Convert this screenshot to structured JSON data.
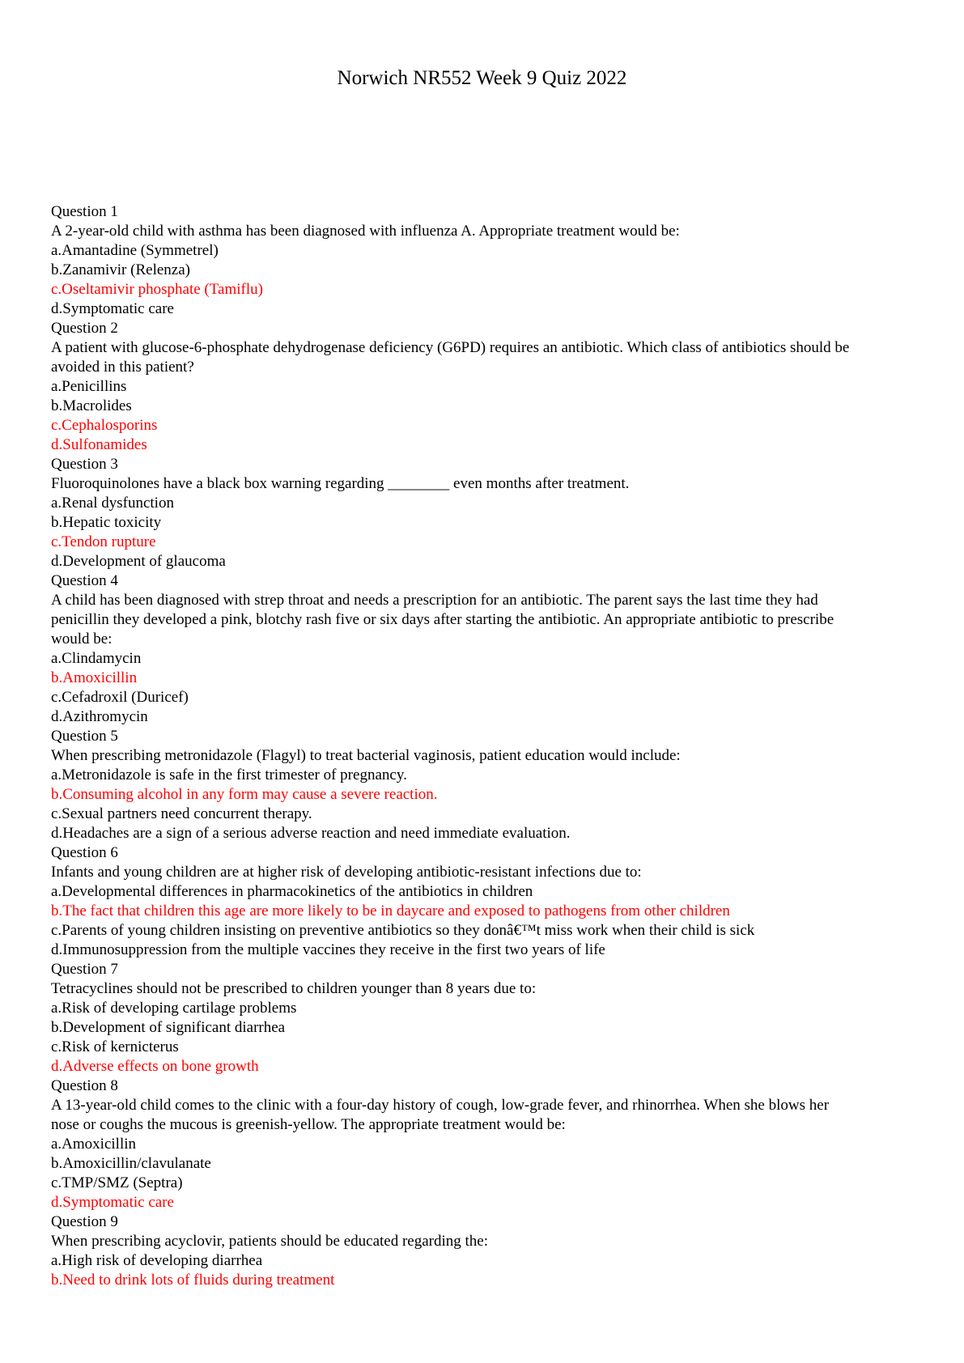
{
  "page": {
    "title": "Norwich NR552 Week 9 Quiz 2022"
  },
  "colors": {
    "text": "#000000",
    "correct_answer": "#ff0000",
    "background": "#ffffff"
  },
  "quiz": {
    "questions": [
      {
        "number": "Question 1",
        "stem_lines": [
          "A 2-year-old child with asthma has been diagnosed with influenza A. Appropriate treatment would be:"
        ],
        "options": [
          {
            "text": "a.Amantadine (Symmetrel)",
            "correct": false
          },
          {
            "text": "b.Zanamivir (Relenza)",
            "correct": false
          },
          {
            "text": "c.Oseltamivir phosphate (Tamiflu)",
            "correct": true
          },
          {
            "text": "d.Symptomatic care",
            "correct": false
          }
        ]
      },
      {
        "number": "Question 2",
        "stem_lines": [
          "A patient with glucose-6-phosphate dehydrogenase deficiency (G6PD) requires an antibiotic. Which class of antibiotics should be",
          "avoided in this patient?"
        ],
        "options": [
          {
            "text": "a.Penicillins",
            "correct": false
          },
          {
            "text": "b.Macrolides",
            "correct": false
          },
          {
            "text": "c.Cephalosporins",
            "correct": true
          },
          {
            "text": "d.Sulfonamides",
            "correct": true
          }
        ]
      },
      {
        "number": "Question 3",
        "stem_lines": [
          "Fluoroquinolones have a black box warning regarding ________ even months after treatment."
        ],
        "options": [
          {
            "text": "a.Renal dysfunction",
            "correct": false
          },
          {
            "text": "b.Hepatic toxicity",
            "correct": false
          },
          {
            "text": "c.Tendon rupture",
            "correct": true
          },
          {
            "text": "d.Development of glaucoma",
            "correct": false
          }
        ]
      },
      {
        "number": "Question 4",
        "stem_lines": [
          "A child has been diagnosed with strep throat and needs a prescription for an antibiotic. The parent says the last time they had",
          "penicillin they developed a pink, blotchy rash five or six days after starting the antibiotic. An appropriate antibiotic to prescribe",
          "would be:"
        ],
        "options": [
          {
            "text": "a.Clindamycin",
            "correct": false
          },
          {
            "text": "b.Amoxicillin",
            "correct": true
          },
          {
            "text": "c.Cefadroxil (Duricef)",
            "correct": false
          },
          {
            "text": "d.Azithromycin",
            "correct": false
          }
        ]
      },
      {
        "number": "Question 5",
        "stem_lines": [
          "When prescribing metronidazole (Flagyl) to treat bacterial vaginosis, patient education would include:"
        ],
        "options": [
          {
            "text": "a.Metronidazole is safe in the first trimester of pregnancy.",
            "correct": false
          },
          {
            "text": "b.Consuming alcohol in any form may cause a severe reaction.",
            "correct": true
          },
          {
            "text": "c.Sexual partners need concurrent therapy.",
            "correct": false
          },
          {
            "text": "d.Headaches are a sign of a serious adverse reaction and need immediate evaluation.",
            "correct": false
          }
        ]
      },
      {
        "number": "Question 6",
        "stem_lines": [
          "Infants and young children are at higher risk of developing antibiotic-resistant infections due to:"
        ],
        "options": [
          {
            "text": "a.Developmental differences in pharmacokinetics of the antibiotics in children",
            "correct": false
          },
          {
            "text": "b.The fact that children this age are more likely to be in daycare and exposed to pathogens from other children",
            "correct": true
          },
          {
            "text": "c.Parents of young children insisting on preventive antibiotics so they donâ€™t miss work when their child is sick",
            "correct": false
          },
          {
            "text": "d.Immunosuppression from the multiple vaccines they receive in the first two years of life",
            "correct": false
          }
        ]
      },
      {
        "number": "Question 7",
        "stem_lines": [
          "Tetracyclines should not be prescribed to children younger than 8 years due to:"
        ],
        "options": [
          {
            "text": "a.Risk of developing cartilage problems",
            "correct": false
          },
          {
            "text": "b.Development of significant diarrhea",
            "correct": false
          },
          {
            "text": "c.Risk of kernicterus",
            "correct": false
          },
          {
            "text": "d.Adverse effects on bone growth",
            "correct": true
          }
        ]
      },
      {
        "number": "Question 8",
        "stem_lines": [
          "A 13-year-old child comes to the clinic with a four-day history of cough, low-grade fever, and rhinorrhea. When she blows her",
          "nose or coughs the mucous is greenish-yellow. The appropriate treatment would be:"
        ],
        "options": [
          {
            "text": "a.Amoxicillin",
            "correct": false
          },
          {
            "text": "b.Amoxicillin/clavulanate",
            "correct": false
          },
          {
            "text": "c.TMP/SMZ (Septra)",
            "correct": false
          },
          {
            "text": "d.Symptomatic care",
            "correct": true
          }
        ]
      },
      {
        "number": "Question 9",
        "stem_lines": [
          "When prescribing acyclovir, patients should be educated regarding the:"
        ],
        "options": [
          {
            "text": "a.High risk of developing diarrhea",
            "correct": false
          },
          {
            "text": "b.Need to drink lots of fluids during treatment",
            "correct": true
          }
        ]
      }
    ]
  }
}
